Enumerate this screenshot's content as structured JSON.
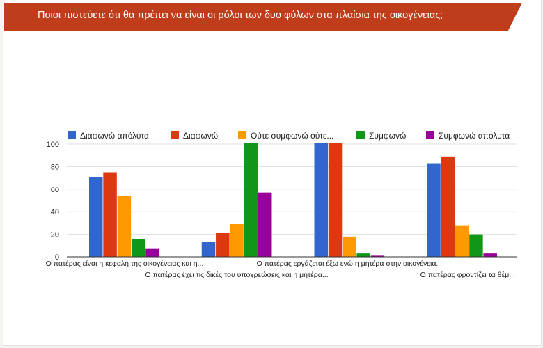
{
  "question_title": "Ποιοι πιστεύετε ότι θα πρέπει να είναι οι ρόλοι των δυο φύλων στα πλαίσια της οικογένειας;",
  "colors": {
    "banner": "#bf3d1b",
    "grid": "#dddddd",
    "axis": "#333333"
  },
  "chart_data": {
    "type": "bar",
    "title": "",
    "xlabel": "",
    "ylabel": "",
    "ylim": [
      0,
      100
    ],
    "yticks": [
      0,
      20,
      40,
      60,
      80,
      100
    ],
    "grid": true,
    "legend_position": "top",
    "categories": [
      "Ο πατέρας είναι η κεφαλή της οικογένειας και η...",
      "Ο πατέρας έχει τις δικές του υποχρεώσεις και η μητέρα...",
      "Ο πατέρας εργάζεται έξω ενώ η μητέρα στην οικογένεια.",
      "Ο πατέρας φροντίζει τα θέμ..."
    ],
    "series": [
      {
        "name": "Διαφωνώ απόλυτα",
        "color": "#3366cc",
        "values": [
          71,
          13,
          101,
          83
        ]
      },
      {
        "name": "Διαφωνώ",
        "color": "#dc3912",
        "values": [
          75,
          21,
          102,
          89
        ]
      },
      {
        "name": "Ούτε συμφωνώ ούτε...",
        "color": "#ff9900",
        "values": [
          54,
          29,
          18,
          28
        ]
      },
      {
        "name": "Συμφωνώ",
        "color": "#109618",
        "values": [
          16,
          103,
          3,
          20
        ]
      },
      {
        "name": "Συμφωνώ απόλυτα",
        "color": "#990099",
        "values": [
          7,
          57,
          1,
          3
        ]
      }
    ]
  }
}
